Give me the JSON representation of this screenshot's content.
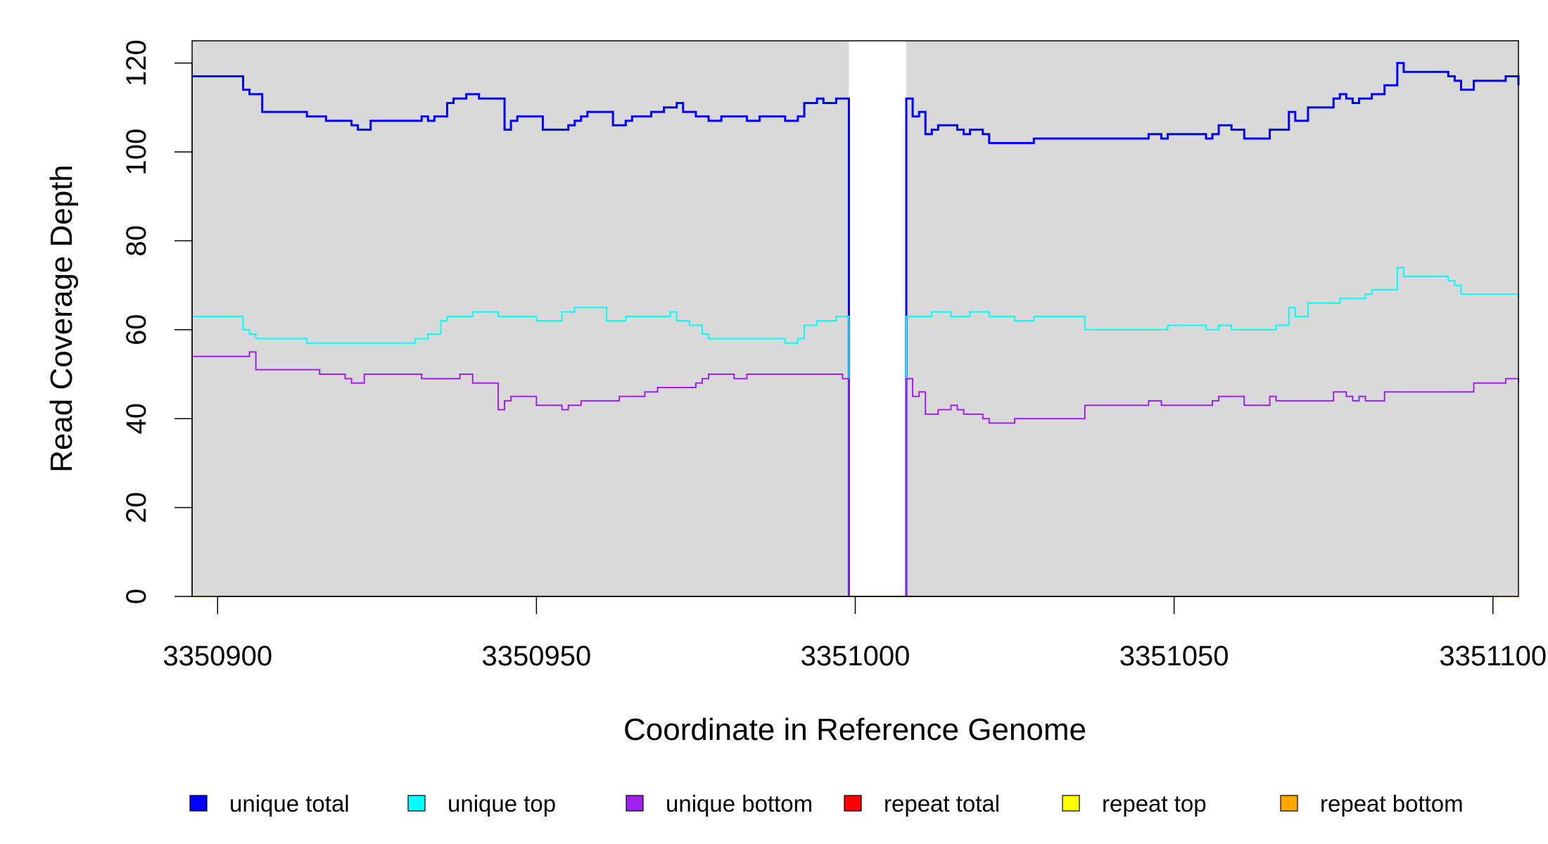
{
  "chart_data": {
    "type": "line",
    "title": "",
    "xlabel": "Coordinate in Reference Genome",
    "ylabel": "Read Coverage Depth",
    "xlim": [
      3350896,
      3351104
    ],
    "ylim": [
      0,
      125
    ],
    "x_ticks": [
      3350900,
      3350950,
      3351000,
      3351050,
      3351100
    ],
    "y_ticks": [
      0,
      20,
      40,
      60,
      80,
      100,
      120
    ],
    "gap": [
      3350999,
      3351008
    ],
    "legend_position": "bottom",
    "series": [
      {
        "name": "unique total",
        "color": "#0000ff",
        "points": [
          [
            3350896,
            117
          ],
          [
            3350899,
            117
          ],
          [
            3350900,
            117
          ],
          [
            3350901,
            117
          ],
          [
            3350902,
            117
          ],
          [
            3350903,
            117
          ],
          [
            3350904,
            114
          ],
          [
            3350905,
            113
          ],
          [
            3350906,
            113
          ],
          [
            3350907,
            109
          ],
          [
            3350908,
            109
          ],
          [
            3350913,
            109
          ],
          [
            3350914,
            108
          ],
          [
            3350916,
            108
          ],
          [
            3350917,
            107
          ],
          [
            3350920,
            107
          ],
          [
            3350921,
            106
          ],
          [
            3350922,
            105
          ],
          [
            3350924,
            107
          ],
          [
            3350932,
            108
          ],
          [
            3350933,
            107
          ],
          [
            3350934,
            108
          ],
          [
            3350936,
            111
          ],
          [
            3350937,
            112
          ],
          [
            3350939,
            113
          ],
          [
            3350941,
            112
          ],
          [
            3350945,
            105
          ],
          [
            3350946,
            107
          ],
          [
            3350947,
            108
          ],
          [
            3350951,
            105
          ],
          [
            3350955,
            106
          ],
          [
            3350956,
            107
          ],
          [
            3350957,
            108
          ],
          [
            3350958,
            109
          ],
          [
            3350962,
            106
          ],
          [
            3350964,
            107
          ],
          [
            3350965,
            108
          ],
          [
            3350968,
            109
          ],
          [
            3350970,
            110
          ],
          [
            3350972,
            111
          ],
          [
            3350973,
            109
          ],
          [
            3350975,
            108
          ],
          [
            3350977,
            107
          ],
          [
            3350979,
            108
          ],
          [
            3350983,
            107
          ],
          [
            3350985,
            108
          ],
          [
            3350989,
            107
          ],
          [
            3350991,
            108
          ],
          [
            3350992,
            111
          ],
          [
            3350994,
            112
          ],
          [
            3350995,
            111
          ],
          [
            3350997,
            112
          ],
          [
            3350999,
            112
          ],
          [
            3350999,
            0
          ]
        ]
      },
      {
        "name": "unique total",
        "color": "#0000ff",
        "points": [
          [
            3351008,
            0
          ],
          [
            3351008,
            112
          ],
          [
            3351009,
            108
          ],
          [
            3351010,
            109
          ],
          [
            3351011,
            104
          ],
          [
            3351012,
            105
          ],
          [
            3351013,
            106
          ],
          [
            3351016,
            105
          ],
          [
            3351017,
            104
          ],
          [
            3351018,
            105
          ],
          [
            3351020,
            104
          ],
          [
            3351021,
            102
          ],
          [
            3351028,
            103
          ],
          [
            3351046,
            104
          ],
          [
            3351048,
            103
          ],
          [
            3351049,
            104
          ],
          [
            3351055,
            103
          ],
          [
            3351056,
            104
          ],
          [
            3351057,
            106
          ],
          [
            3351059,
            105
          ],
          [
            3351061,
            103
          ],
          [
            3351065,
            105
          ],
          [
            3351068,
            109
          ],
          [
            3351069,
            107
          ],
          [
            3351071,
            110
          ],
          [
            3351075,
            112
          ],
          [
            3351076,
            113
          ],
          [
            3351077,
            112
          ],
          [
            3351078,
            111
          ],
          [
            3351079,
            112
          ],
          [
            3351081,
            113
          ],
          [
            3351083,
            115
          ],
          [
            3351085,
            120
          ],
          [
            3351086,
            118
          ],
          [
            3351093,
            117
          ],
          [
            3351094,
            116
          ],
          [
            3351095,
            114
          ],
          [
            3351097,
            116
          ],
          [
            3351102,
            117
          ],
          [
            3351104,
            116
          ],
          [
            3351105,
            115
          ],
          [
            3351106,
            115
          ]
        ]
      },
      {
        "name": "unique top",
        "color": "#00ffff",
        "points": [
          [
            3350896,
            63
          ],
          [
            3350904,
            60
          ],
          [
            3350905,
            59
          ],
          [
            3350906,
            58
          ],
          [
            3350914,
            57
          ],
          [
            3350931,
            58
          ],
          [
            3350933,
            59
          ],
          [
            3350935,
            62
          ],
          [
            3350936,
            63
          ],
          [
            3350940,
            64
          ],
          [
            3350944,
            63
          ],
          [
            3350950,
            62
          ],
          [
            3350954,
            64
          ],
          [
            3350956,
            65
          ],
          [
            3350961,
            62
          ],
          [
            3350964,
            63
          ],
          [
            3350971,
            64
          ],
          [
            3350972,
            62
          ],
          [
            3350974,
            61
          ],
          [
            3350976,
            59
          ],
          [
            3350977,
            58
          ],
          [
            3350989,
            57
          ],
          [
            3350991,
            58
          ],
          [
            3350992,
            61
          ],
          [
            3350994,
            62
          ],
          [
            3350997,
            63
          ],
          [
            3350999,
            63
          ],
          [
            3350999,
            49
          ]
        ]
      },
      {
        "name": "unique top",
        "color": "#00ffff",
        "points": [
          [
            3351008,
            49
          ],
          [
            3351008,
            63
          ],
          [
            3351012,
            64
          ],
          [
            3351015,
            63
          ],
          [
            3351018,
            64
          ],
          [
            3351021,
            63
          ],
          [
            3351025,
            62
          ],
          [
            3351028,
            63
          ],
          [
            3351036,
            60
          ],
          [
            3351049,
            61
          ],
          [
            3351055,
            60
          ],
          [
            3351057,
            61
          ],
          [
            3351059,
            60
          ],
          [
            3351066,
            61
          ],
          [
            3351068,
            65
          ],
          [
            3351069,
            63
          ],
          [
            3351071,
            66
          ],
          [
            3351076,
            67
          ],
          [
            3351080,
            68
          ],
          [
            3351081,
            69
          ],
          [
            3351085,
            74
          ],
          [
            3351086,
            72
          ],
          [
            3351093,
            71
          ],
          [
            3351094,
            70
          ],
          [
            3351095,
            68
          ],
          [
            3351105,
            67
          ],
          [
            3351106,
            67
          ]
        ]
      },
      {
        "name": "unique bottom",
        "color": "#a020f0",
        "points": [
          [
            3350896,
            54
          ],
          [
            3350902,
            54
          ],
          [
            3350905,
            55
          ],
          [
            3350906,
            51
          ],
          [
            3350916,
            50
          ],
          [
            3350920,
            49
          ],
          [
            3350921,
            48
          ],
          [
            3350923,
            50
          ],
          [
            3350932,
            49
          ],
          [
            3350938,
            50
          ],
          [
            3350940,
            48
          ],
          [
            3350944,
            42
          ],
          [
            3350945,
            44
          ],
          [
            3350946,
            45
          ],
          [
            3350950,
            43
          ],
          [
            3350954,
            42
          ],
          [
            3350955,
            43
          ],
          [
            3350957,
            44
          ],
          [
            3350963,
            45
          ],
          [
            3350967,
            46
          ],
          [
            3350969,
            47
          ],
          [
            3350975,
            48
          ],
          [
            3350976,
            49
          ],
          [
            3350977,
            50
          ],
          [
            3350981,
            49
          ],
          [
            3350983,
            50
          ],
          [
            3350992,
            50
          ],
          [
            3350998,
            49
          ],
          [
            3350999,
            49
          ],
          [
            3350999,
            0
          ]
        ]
      },
      {
        "name": "unique bottom",
        "color": "#a020f0",
        "points": [
          [
            3351008,
            0
          ],
          [
            3351008,
            49
          ],
          [
            3351009,
            45
          ],
          [
            3351010,
            46
          ],
          [
            3351011,
            41
          ],
          [
            3351013,
            42
          ],
          [
            3351015,
            43
          ],
          [
            3351016,
            42
          ],
          [
            3351017,
            41
          ],
          [
            3351020,
            40
          ],
          [
            3351021,
            39
          ],
          [
            3351025,
            40
          ],
          [
            3351036,
            43
          ],
          [
            3351046,
            44
          ],
          [
            3351048,
            43
          ],
          [
            3351056,
            44
          ],
          [
            3351057,
            45
          ],
          [
            3351061,
            43
          ],
          [
            3351065,
            45
          ],
          [
            3351066,
            44
          ],
          [
            3351075,
            46
          ],
          [
            3351077,
            45
          ],
          [
            3351078,
            44
          ],
          [
            3351079,
            45
          ],
          [
            3351080,
            44
          ],
          [
            3351083,
            46
          ],
          [
            3351097,
            48
          ],
          [
            3351102,
            49
          ],
          [
            3351104,
            48
          ],
          [
            3351106,
            48
          ]
        ]
      },
      {
        "name": "repeat total",
        "color": "#ff0000",
        "points": [
          [
            3350896,
            0
          ],
          [
            3351106,
            0
          ]
        ]
      },
      {
        "name": "repeat top",
        "color": "#ffff00",
        "points": [
          [
            3350896,
            0
          ],
          [
            3351106,
            0
          ]
        ]
      },
      {
        "name": "repeat bottom",
        "color": "#ffa500",
        "points": [
          [
            3350896,
            0
          ],
          [
            3351106,
            0
          ]
        ]
      }
    ],
    "legend": [
      {
        "name": "unique total",
        "color": "#0000ff"
      },
      {
        "name": "unique top",
        "color": "#00ffff"
      },
      {
        "name": "unique bottom",
        "color": "#a020f0"
      },
      {
        "name": "repeat total",
        "color": "#ff0000"
      },
      {
        "name": "repeat top",
        "color": "#ffff00"
      },
      {
        "name": "repeat bottom",
        "color": "#ffa500"
      }
    ],
    "colors": {
      "plot_background": "#d9d9d9",
      "gap_fill": "#ffffff",
      "frame": "#000000"
    }
  }
}
